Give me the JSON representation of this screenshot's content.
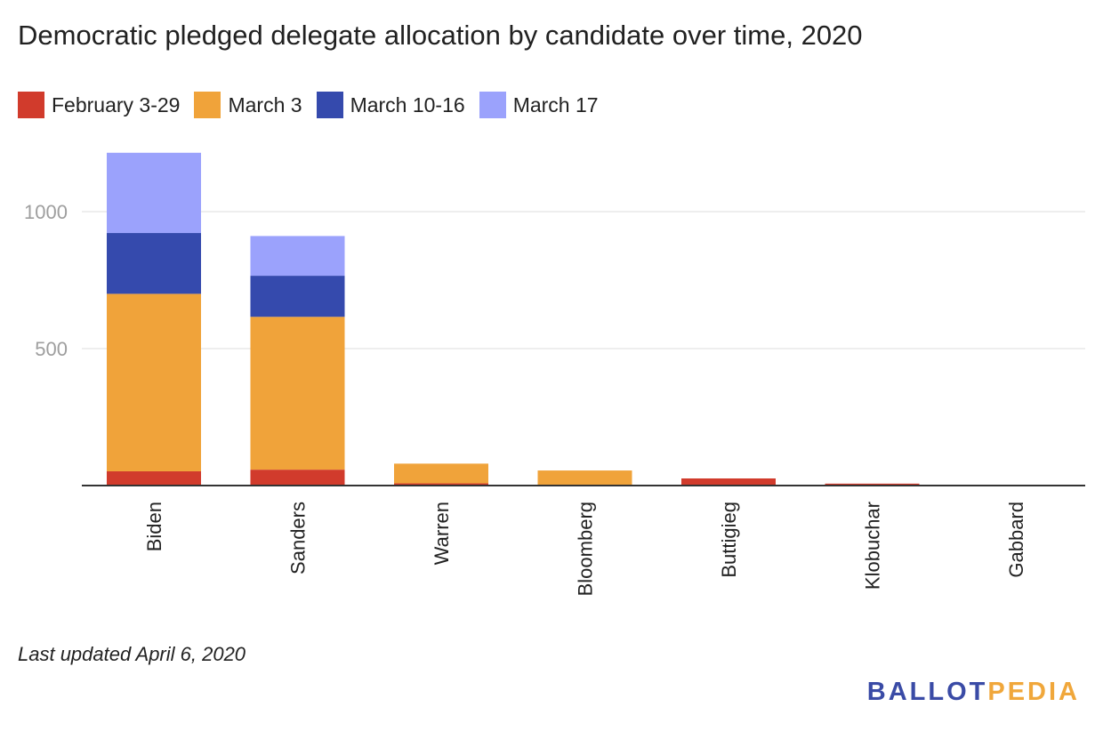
{
  "chart_data": {
    "type": "bar",
    "stacked": true,
    "title": "Democratic pledged delegate allocation by candidate over time, 2020",
    "xlabel": "",
    "ylabel": "",
    "categories": [
      "Biden",
      "Sanders",
      "Warren",
      "Bloomberg",
      "Buttigieg",
      "Klobuchar",
      "Gabbard"
    ],
    "series": [
      {
        "name": "February 3-29",
        "color": "#d13b2c",
        "values": [
          52,
          58,
          8,
          0,
          26,
          7,
          0
        ]
      },
      {
        "name": "March 3",
        "color": "#f0a33a",
        "values": [
          648,
          558,
          72,
          55,
          0,
          0,
          2
        ]
      },
      {
        "name": "March 10-16",
        "color": "#354aad",
        "values": [
          222,
          150,
          0,
          0,
          0,
          0,
          0
        ]
      },
      {
        "name": "March 17",
        "color": "#9ba2fc",
        "values": [
          293,
          145,
          0,
          0,
          0,
          0,
          0
        ]
      }
    ],
    "yticks": [
      500,
      1000
    ],
    "ylim": [
      0,
      1250
    ],
    "grid": true,
    "legend_position": "top-left"
  },
  "footnote": "Last updated April 6, 2020",
  "logo": {
    "ballot": "BALLOT",
    "pedia": "PEDIA"
  }
}
